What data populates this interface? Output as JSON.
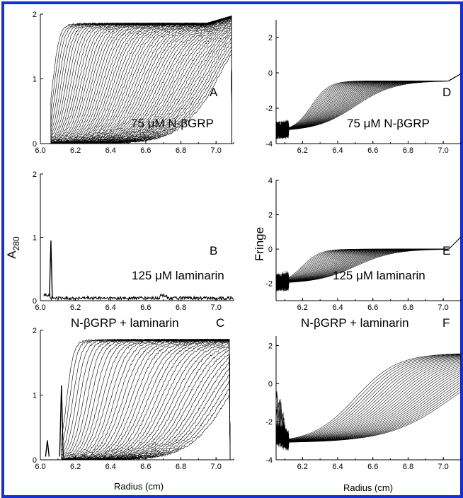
{
  "frame": {
    "border_color": "#1530d8"
  },
  "labels": {
    "a280": "A",
    "a280_sub": "280",
    "fringe": "Fringe",
    "radius_left": "Radius (cm)",
    "radius_right": "Radius (cm)"
  },
  "chart_data": [
    {
      "id": "A",
      "type": "line",
      "panel_letter": "A",
      "annotation": "75 μM N-βGRP",
      "xlim": [
        6.0,
        7.1
      ],
      "ylim": [
        0,
        2
      ],
      "xticks": [
        "6.0",
        "6.2",
        "6.4",
        "6.6",
        "6.8",
        "7.0"
      ],
      "yticks": [
        "0",
        "1",
        "2"
      ],
      "n_scans": 60,
      "plateau": 1.85,
      "meniscus_radius": 6.06,
      "bottom_radius": 7.09,
      "boundary_start_radius": 6.07,
      "boundary_end_radius": 7.0
    },
    {
      "id": "B",
      "type": "line",
      "panel_letter": "B",
      "annotation": "125 μM laminarin",
      "xlim": [
        6.0,
        7.1
      ],
      "ylim": [
        0,
        2
      ],
      "xticks": [
        "6.0",
        "6.2",
        "6.4",
        "6.6",
        "6.8",
        "7.0"
      ],
      "yticks": [
        "0",
        "1",
        "2"
      ],
      "baseline": 0.04,
      "peak_radius": 6.06,
      "peak_height": 0.95
    },
    {
      "id": "C",
      "type": "line",
      "panel_letter": "C",
      "annotation": "N-βGRP + laminarin",
      "xlim": [
        6.0,
        7.1
      ],
      "ylim": [
        0,
        2
      ],
      "xticks": [
        "6.0",
        "6.2",
        "6.4",
        "6.6",
        "6.8",
        "7.0"
      ],
      "yticks": [
        "0",
        "1",
        "2"
      ],
      "n_scans": 40,
      "plateau": 1.85,
      "meniscus_radius": 6.12,
      "bottom_radius": 7.08,
      "boundary_start_radius": 6.15,
      "boundary_end_radius": 7.06,
      "peaks": [
        {
          "x": 6.04,
          "y": 0.3
        },
        {
          "x": 6.12,
          "y": 1.15
        }
      ]
    },
    {
      "id": "D",
      "type": "line",
      "panel_letter": "D",
      "annotation": "75 μM N-βGRP",
      "xlim": [
        6.05,
        7.1
      ],
      "ylim": [
        -4,
        3
      ],
      "xticks": [
        "6.2",
        "6.4",
        "6.6",
        "6.8",
        "7.0"
      ],
      "yticks": [
        "-4",
        "-2",
        "0",
        "2"
      ],
      "n_scans": 30,
      "start_level": -3.3,
      "plateau": -0.45,
      "boundary_start_radius": 6.25,
      "boundary_end_radius": 6.5,
      "end_rise": 0.4
    },
    {
      "id": "E",
      "type": "line",
      "panel_letter": "E",
      "annotation": "125 μM laminarin",
      "xlim": [
        6.05,
        7.1
      ],
      "ylim": [
        -3,
        4
      ],
      "xticks": [
        "6.2",
        "6.4",
        "6.6",
        "6.8",
        "7.0"
      ],
      "yticks": [
        "-2",
        "0",
        "2",
        "4"
      ],
      "n_scans": 30,
      "start_level": -2.0,
      "plateau": 0.0,
      "boundary_start_radius": 6.2,
      "boundary_end_radius": 6.5,
      "end_rise": 0.7
    },
    {
      "id": "F",
      "type": "line",
      "panel_letter": "F",
      "annotation": "N-βGRP + laminarin",
      "xlim": [
        6.05,
        7.1
      ],
      "ylim": [
        -4,
        2.5
      ],
      "xticks": [
        "6.2",
        "6.4",
        "6.6",
        "6.8",
        "7.0"
      ],
      "yticks": [
        "-4",
        "-2",
        "0",
        "2"
      ],
      "n_scans": 30,
      "start_level": -3.1,
      "plateau": 1.6,
      "boundary_start_radius": 6.5,
      "boundary_end_radius": 7.05
    }
  ]
}
